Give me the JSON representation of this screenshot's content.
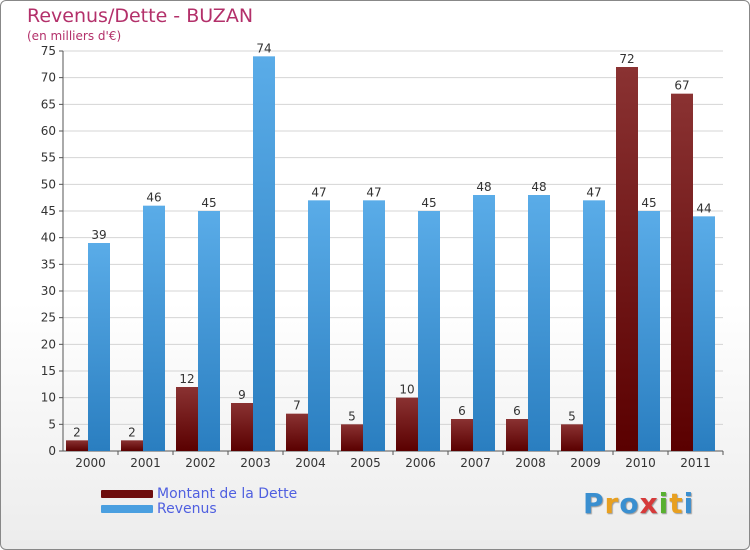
{
  "page": {
    "title": "Revenus/Dette - BUZAN",
    "subtitle": "(en milliers d'€)"
  },
  "chart_data": {
    "type": "bar",
    "categories": [
      "2000",
      "2001",
      "2002",
      "2003",
      "2004",
      "2005",
      "2006",
      "2007",
      "2008",
      "2009",
      "2010",
      "2011"
    ],
    "series": [
      {
        "name": "Montant de la Dette",
        "values": [
          2,
          2,
          12,
          9,
          7,
          5,
          10,
          6,
          6,
          5,
          72,
          67
        ],
        "color": "#7a1010"
      },
      {
        "name": "Revenus",
        "values": [
          39,
          46,
          45,
          74,
          47,
          47,
          45,
          48,
          48,
          47,
          45,
          44
        ],
        "color": "#4a9fe0"
      }
    ],
    "ylim": [
      0,
      75
    ],
    "yticks": [
      "0",
      "5",
      "10",
      "15",
      "20",
      "25",
      "30",
      "35",
      "40",
      "45",
      "50",
      "55",
      "60",
      "65",
      "70",
      "75"
    ],
    "grid": true,
    "legend_position": "bottom-left",
    "data_labels": true
  },
  "legend": {
    "items": [
      {
        "label": "Montant de la Dette",
        "color": "#6e0d0d"
      },
      {
        "label": "Revenus",
        "color": "#4a9fe0"
      }
    ]
  },
  "logo": {
    "letters": [
      {
        "ch": "P",
        "color": "#3a8fd0"
      },
      {
        "ch": "r",
        "color": "#e8a020"
      },
      {
        "ch": "o",
        "color": "#3a8fd0"
      },
      {
        "ch": "x",
        "color": "#d63a3a"
      },
      {
        "ch": "i",
        "color": "#58b030"
      },
      {
        "ch": "t",
        "color": "#e8a020"
      },
      {
        "ch": "i",
        "color": "#3a8fd0"
      }
    ]
  }
}
